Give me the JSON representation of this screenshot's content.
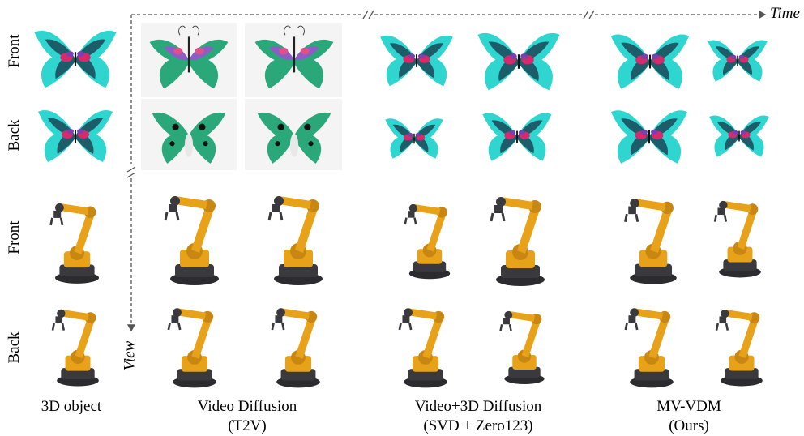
{
  "row_labels": [
    "Front",
    "Back",
    "Front",
    "Back"
  ],
  "axes": {
    "time": "Time",
    "view": "View"
  },
  "columns": [
    {
      "line1": "3D object",
      "line2": ""
    },
    {
      "line1": "Video Diffusion",
      "line2": "(T2V)"
    },
    {
      "line1": "Video+3D Diffusion",
      "line2": "(SVD + Zero123)"
    },
    {
      "line1": "MV-VDM",
      "line2": "(Ours)"
    }
  ],
  "colors": {
    "butterfly_cyan": "#2fd6d0",
    "butterfly_magenta": "#d8286e",
    "butterfly_purple": "#7a3fb0",
    "butterfly_green": "#2aa87a",
    "robot_orange": "#e8a21a",
    "robot_dark": "#3a3a3e"
  }
}
